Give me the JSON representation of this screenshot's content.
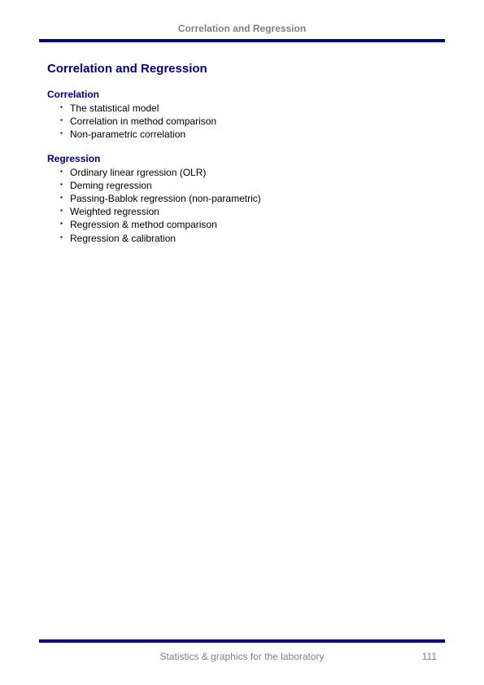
{
  "header": {
    "title": "Correlation and Regression"
  },
  "main": {
    "title": "Correlation and Regression",
    "correlation": {
      "heading": "Correlation",
      "items": [
        "The statistical model",
        "Correlation in method comparison",
        "Non-parametric correlation"
      ]
    },
    "regression": {
      "heading": "Regression",
      "items": [
        "Ordinary linear rgression (OLR)",
        "Deming regression",
        "Passing-Bablok regression (non-parametric)",
        "Weighted regression",
        "Regression & method comparison",
        "Regression & calibration"
      ]
    }
  },
  "footer": {
    "text": "Statistics & graphics for the laboratory",
    "page_number": "111"
  },
  "colors": {
    "rule": "#000080",
    "title": "#000080",
    "header_text": "#808080",
    "body_text": "#000000"
  }
}
